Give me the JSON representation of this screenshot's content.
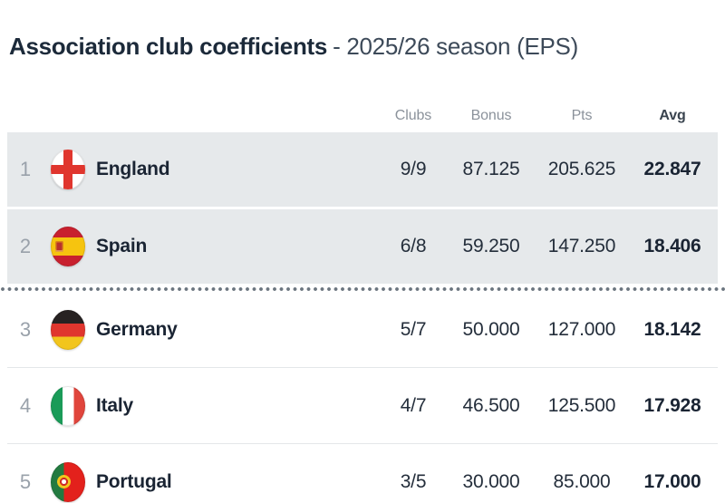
{
  "page": {
    "title_main": "Association club coefficients",
    "title_sub": "- 2025/26 season (EPS)"
  },
  "colors": {
    "highlight_row_bg": "#e6e9eb",
    "title_text": "#1c2a3a",
    "title_sub_text": "#3d4a59",
    "header_text": "#8b929b",
    "header_strong_text": "#39434e",
    "value_text": "#242e3b",
    "name_text": "#1a2433",
    "rank_text": "#99a1aa",
    "divider_dot": "#6b757f",
    "row_border": "#e4e7e9"
  },
  "icons": {
    "england_flag": "circle, white with red St George cross",
    "spain_flag": "circle, red-yellow-red horizontal bands with crest",
    "germany_flag": "circle, black-red-gold horizontal bands",
    "italy_flag": "circle, green-white-red vertical bands",
    "portugal_flag": "circle, green-red vertical with armillary emblem"
  },
  "table": {
    "columns": [
      "Clubs",
      "Bonus",
      "Pts",
      "Avg"
    ],
    "rows": [
      {
        "rank": "1",
        "country": "England",
        "flag": "england",
        "clubs": "9/9",
        "bonus": "87.125",
        "pts": "205.625",
        "avg": "22.847",
        "highlighted": true
      },
      {
        "rank": "2",
        "country": "Spain",
        "flag": "spain",
        "clubs": "6/8",
        "bonus": "59.250",
        "pts": "147.250",
        "avg": "18.406",
        "highlighted": true,
        "divider_after": true
      },
      {
        "rank": "3",
        "country": "Germany",
        "flag": "germany",
        "clubs": "5/7",
        "bonus": "50.000",
        "pts": "127.000",
        "avg": "18.142"
      },
      {
        "rank": "4",
        "country": "Italy",
        "flag": "italy",
        "clubs": "4/7",
        "bonus": "46.500",
        "pts": "125.500",
        "avg": "17.928"
      },
      {
        "rank": "5",
        "country": "Portugal",
        "flag": "portugal",
        "clubs": "3/5",
        "bonus": "30.000",
        "pts": "85.000",
        "avg": "17.000"
      }
    ]
  }
}
